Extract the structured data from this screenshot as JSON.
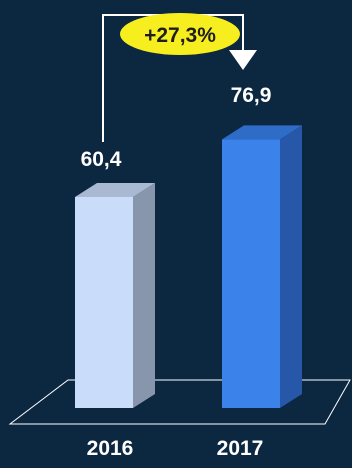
{
  "chart_data": {
    "type": "bar",
    "categories": [
      "2016",
      "2017"
    ],
    "values": [
      60.4,
      76.9
    ],
    "value_labels": [
      "60,4",
      "76,9"
    ],
    "growth_label": "+27,3%",
    "ylim": [
      0,
      90
    ],
    "title": "",
    "xlabel": "",
    "ylabel": "",
    "grid": false,
    "legend": "none",
    "colors": {
      "background": "#0c2740",
      "bar_2016_front": "#c9dcfa",
      "bar_2016_side": "#8796ac",
      "bar_2016_top": "#a9b9d2",
      "bar_2017_front": "#3b82ea",
      "bar_2017_side": "#2757a8",
      "bar_2017_top": "#2e6cc8",
      "label_text": "#ffffff",
      "badge_fill": "#f6ee1f",
      "badge_text": "#1e1e1e",
      "axis_line": "#ffffff"
    }
  }
}
